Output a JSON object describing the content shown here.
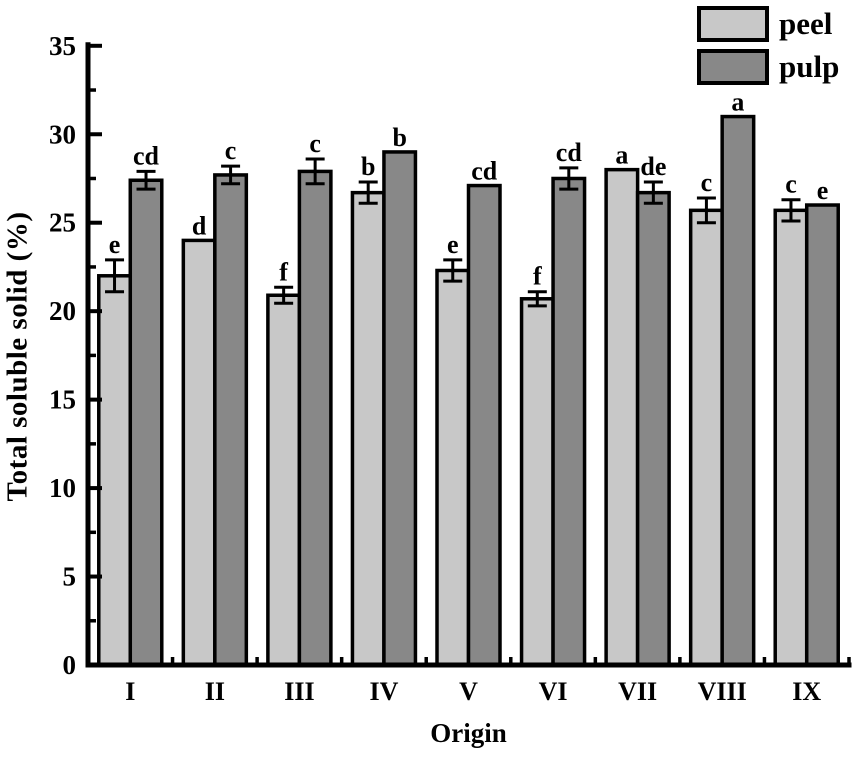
{
  "chart_data": {
    "type": "bar",
    "title": "",
    "xlabel": "Origin",
    "ylabel": "Total soluble solid (%)",
    "categories": [
      "I",
      "II",
      "III",
      "IV",
      "V",
      "VI",
      "VII",
      "VIII",
      "IX"
    ],
    "series": [
      {
        "name": "peel",
        "color": "#c8c8c8",
        "values": [
          22.0,
          24.0,
          20.9,
          26.7,
          22.3,
          20.7,
          28.0,
          25.7,
          25.7
        ],
        "errors": [
          0.9,
          0,
          0.45,
          0.6,
          0.6,
          0.4,
          0,
          0.7,
          0.6
        ],
        "letters": [
          "e",
          "d",
          "f",
          "b",
          "e",
          "f",
          "a",
          "c",
          "c"
        ]
      },
      {
        "name": "pulp",
        "color": "#888888",
        "values": [
          27.4,
          27.7,
          27.9,
          29.0,
          27.1,
          27.5,
          26.7,
          31.0,
          26.0
        ],
        "errors": [
          0.5,
          0.5,
          0.7,
          0,
          0,
          0.6,
          0.6,
          0,
          0
        ],
        "letters": [
          "cd",
          "c",
          "c",
          "b",
          "cd",
          "cd",
          "de",
          "a",
          "e"
        ]
      }
    ],
    "ylim": [
      0,
      35
    ],
    "ytick_step": 5,
    "yminor_step": 2.5,
    "y_tick_labels": [
      "0",
      "5",
      "10",
      "15",
      "20",
      "25",
      "30",
      "35"
    ],
    "grid": false,
    "legend_position": "top-right",
    "colors": {
      "axis": "#000000",
      "background": "#ffffff",
      "bar_border": "#000000",
      "error_bar": "#000000"
    }
  }
}
